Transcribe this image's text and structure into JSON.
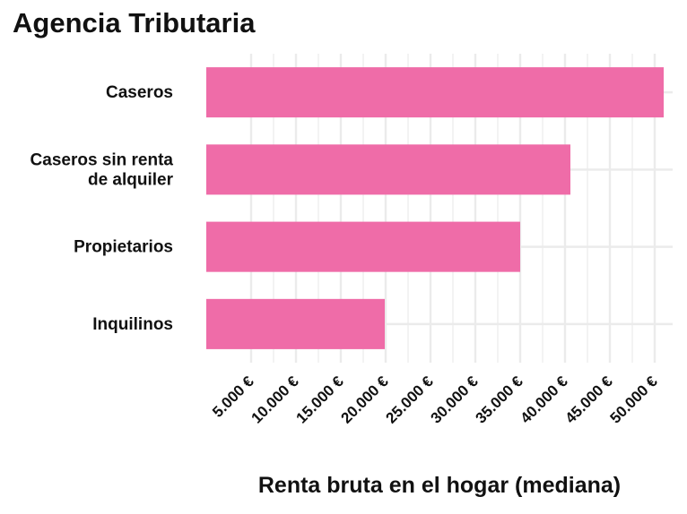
{
  "chart_data": {
    "type": "bar",
    "orientation": "horizontal",
    "title": "Agencia Tributaria",
    "xlabel": "Renta bruta en el hogar (mediana)",
    "ylabel": "",
    "categories": [
      "Caseros",
      "Caseros sin renta de alquiler",
      "Propietarios",
      "Inquilinos"
    ],
    "category_lines": [
      [
        "Caseros"
      ],
      [
        "Caseros sin renta",
        "de alquiler"
      ],
      [
        "Propietarios"
      ],
      [
        "Inquilinos"
      ]
    ],
    "values": [
      51000,
      40600,
      35000,
      19900
    ],
    "xlim": [
      0,
      52000
    ],
    "xticks": [
      5000,
      10000,
      15000,
      20000,
      25000,
      30000,
      35000,
      40000,
      45000,
      50000
    ],
    "xtick_labels": [
      "5.000 €",
      "10.000 €",
      "15.000 €",
      "20.000 €",
      "25.000 €",
      "30.000 €",
      "35.000 €",
      "40.000 €",
      "45.000 €",
      "50.000 €"
    ],
    "bar_color": "#ef6ca8",
    "grid": true,
    "grid_color": "#ebebeb",
    "legend": "none"
  }
}
